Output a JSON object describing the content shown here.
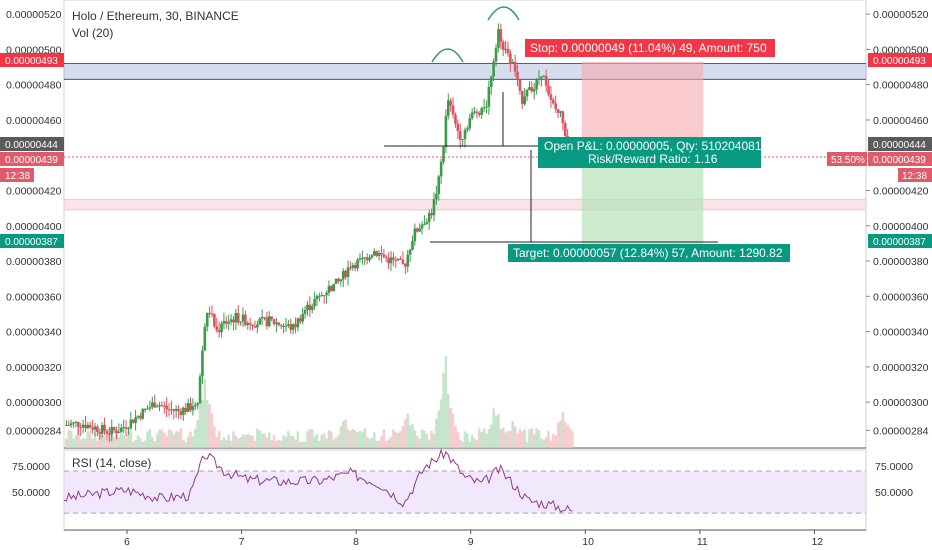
{
  "chart_data": {
    "type": "candlestick",
    "title": "Holo / Ethereum, 30, BINANCE",
    "volume_label": "Vol (20)",
    "rsi_label": "RSI (14, close)",
    "price_ticks": [
      "0.00000520",
      "0.00000500",
      "0.00000480",
      "0.00000460",
      "0.00000440",
      "0.00000420",
      "0.00000400",
      "0.00000380",
      "0.00000360",
      "0.00000340",
      "0.00000320",
      "0.00000300",
      "0.00000284"
    ],
    "x_ticks": [
      "6",
      "7",
      "8",
      "9",
      "10",
      "11",
      "12"
    ],
    "rsi_ticks": [
      "75.0000",
      "50.0000"
    ],
    "rsi_levels": [
      70,
      30
    ],
    "rsi_range": [
      14,
      90
    ],
    "price_range": [
      2.74e-06,
      5.28e-06
    ],
    "time_range_days": [
      5.45,
      12.45
    ],
    "tags": {
      "stop_price": "0.00000493",
      "entry_price": "0.00000444",
      "current_price": "0.00000439",
      "target_price": "0.00000387",
      "time_left": "12:38",
      "percent": "53.50%"
    },
    "annotations": {
      "stop": "Stop: 0.00000049 (11.04%) 49, Amount: 750",
      "open_pnl": "Open P&L: 0.00000005, Qty: 510204081",
      "risk_reward": "Risk/Reward Ratio: 1.16",
      "target": "Target: 0.00000057 (12.84%) 57, Amount: 1290.82"
    },
    "position": {
      "start_day": 9.97,
      "end_day": 11.03,
      "entry": 4.44e-06,
      "stop": 4.93e-06,
      "target": 3.87e-06
    },
    "zones": [
      {
        "name": "resistance",
        "from": 4.83e-06,
        "to": 4.92e-06,
        "color": "#a8b4d8"
      },
      {
        "name": "support",
        "from": 4.09e-06,
        "to": 4.15e-06,
        "color": "#f2c4cc"
      }
    ],
    "close_path": [
      [
        5.45,
        2.87
      ],
      [
        5.6,
        2.88
      ],
      [
        5.75,
        2.85
      ],
      [
        5.85,
        2.83
      ],
      [
        5.95,
        2.85
      ],
      [
        6.05,
        2.9
      ],
      [
        6.15,
        2.95
      ],
      [
        6.25,
        3.0
      ],
      [
        6.35,
        2.96
      ],
      [
        6.45,
        2.95
      ],
      [
        6.55,
        2.97
      ],
      [
        6.62,
        3.02
      ],
      [
        6.68,
        3.45
      ],
      [
        6.72,
        3.52
      ],
      [
        6.78,
        3.4
      ],
      [
        6.85,
        3.45
      ],
      [
        6.95,
        3.48
      ],
      [
        7.05,
        3.46
      ],
      [
        7.15,
        3.45
      ],
      [
        7.25,
        3.46
      ],
      [
        7.35,
        3.44
      ],
      [
        7.45,
        3.42
      ],
      [
        7.55,
        3.52
      ],
      [
        7.65,
        3.58
      ],
      [
        7.75,
        3.64
      ],
      [
        7.85,
        3.68
      ],
      [
        7.95,
        3.78
      ],
      [
        8.05,
        3.8
      ],
      [
        8.15,
        3.86
      ],
      [
        8.25,
        3.82
      ],
      [
        8.35,
        3.79
      ],
      [
        8.42,
        3.77
      ],
      [
        8.5,
        3.95
      ],
      [
        8.58,
        4.02
      ],
      [
        8.66,
        4.08
      ],
      [
        8.72,
        4.25
      ],
      [
        8.76,
        4.45
      ],
      [
        8.8,
        4.72
      ],
      [
        8.86,
        4.58
      ],
      [
        8.92,
        4.5
      ],
      [
        9.0,
        4.62
      ],
      [
        9.08,
        4.66
      ],
      [
        9.14,
        4.7
      ],
      [
        9.2,
        4.95
      ],
      [
        9.24,
        5.12
      ],
      [
        9.3,
        4.98
      ],
      [
        9.38,
        4.9
      ],
      [
        9.44,
        4.7
      ],
      [
        9.5,
        4.8
      ],
      [
        9.56,
        4.78
      ],
      [
        9.62,
        4.88
      ],
      [
        9.68,
        4.72
      ],
      [
        9.74,
        4.66
      ],
      [
        9.8,
        4.62
      ],
      [
        9.85,
        4.44
      ],
      [
        9.9,
        4.39
      ]
    ],
    "volume_spikes": [
      {
        "day": 6.68,
        "volume": 78
      },
      {
        "day": 7.9,
        "volume": 34
      },
      {
        "day": 8.46,
        "volume": 42
      },
      {
        "day": 8.78,
        "volume": 100
      },
      {
        "day": 9.22,
        "volume": 48
      },
      {
        "day": 9.36,
        "volume": 30
      },
      {
        "day": 9.8,
        "volume": 38
      }
    ],
    "rsi_path": [
      [
        5.45,
        44
      ],
      [
        5.7,
        48
      ],
      [
        6.0,
        52
      ],
      [
        6.3,
        44
      ],
      [
        6.55,
        47
      ],
      [
        6.68,
        86
      ],
      [
        6.85,
        70
      ],
      [
        7.05,
        62
      ],
      [
        7.4,
        60
      ],
      [
        7.7,
        61
      ],
      [
        7.95,
        68
      ],
      [
        8.2,
        58
      ],
      [
        8.42,
        40
      ],
      [
        8.6,
        74
      ],
      [
        8.78,
        88
      ],
      [
        8.95,
        64
      ],
      [
        9.1,
        58
      ],
      [
        9.25,
        72
      ],
      [
        9.5,
        42
      ],
      [
        9.7,
        38
      ],
      [
        9.9,
        32
      ]
    ]
  }
}
